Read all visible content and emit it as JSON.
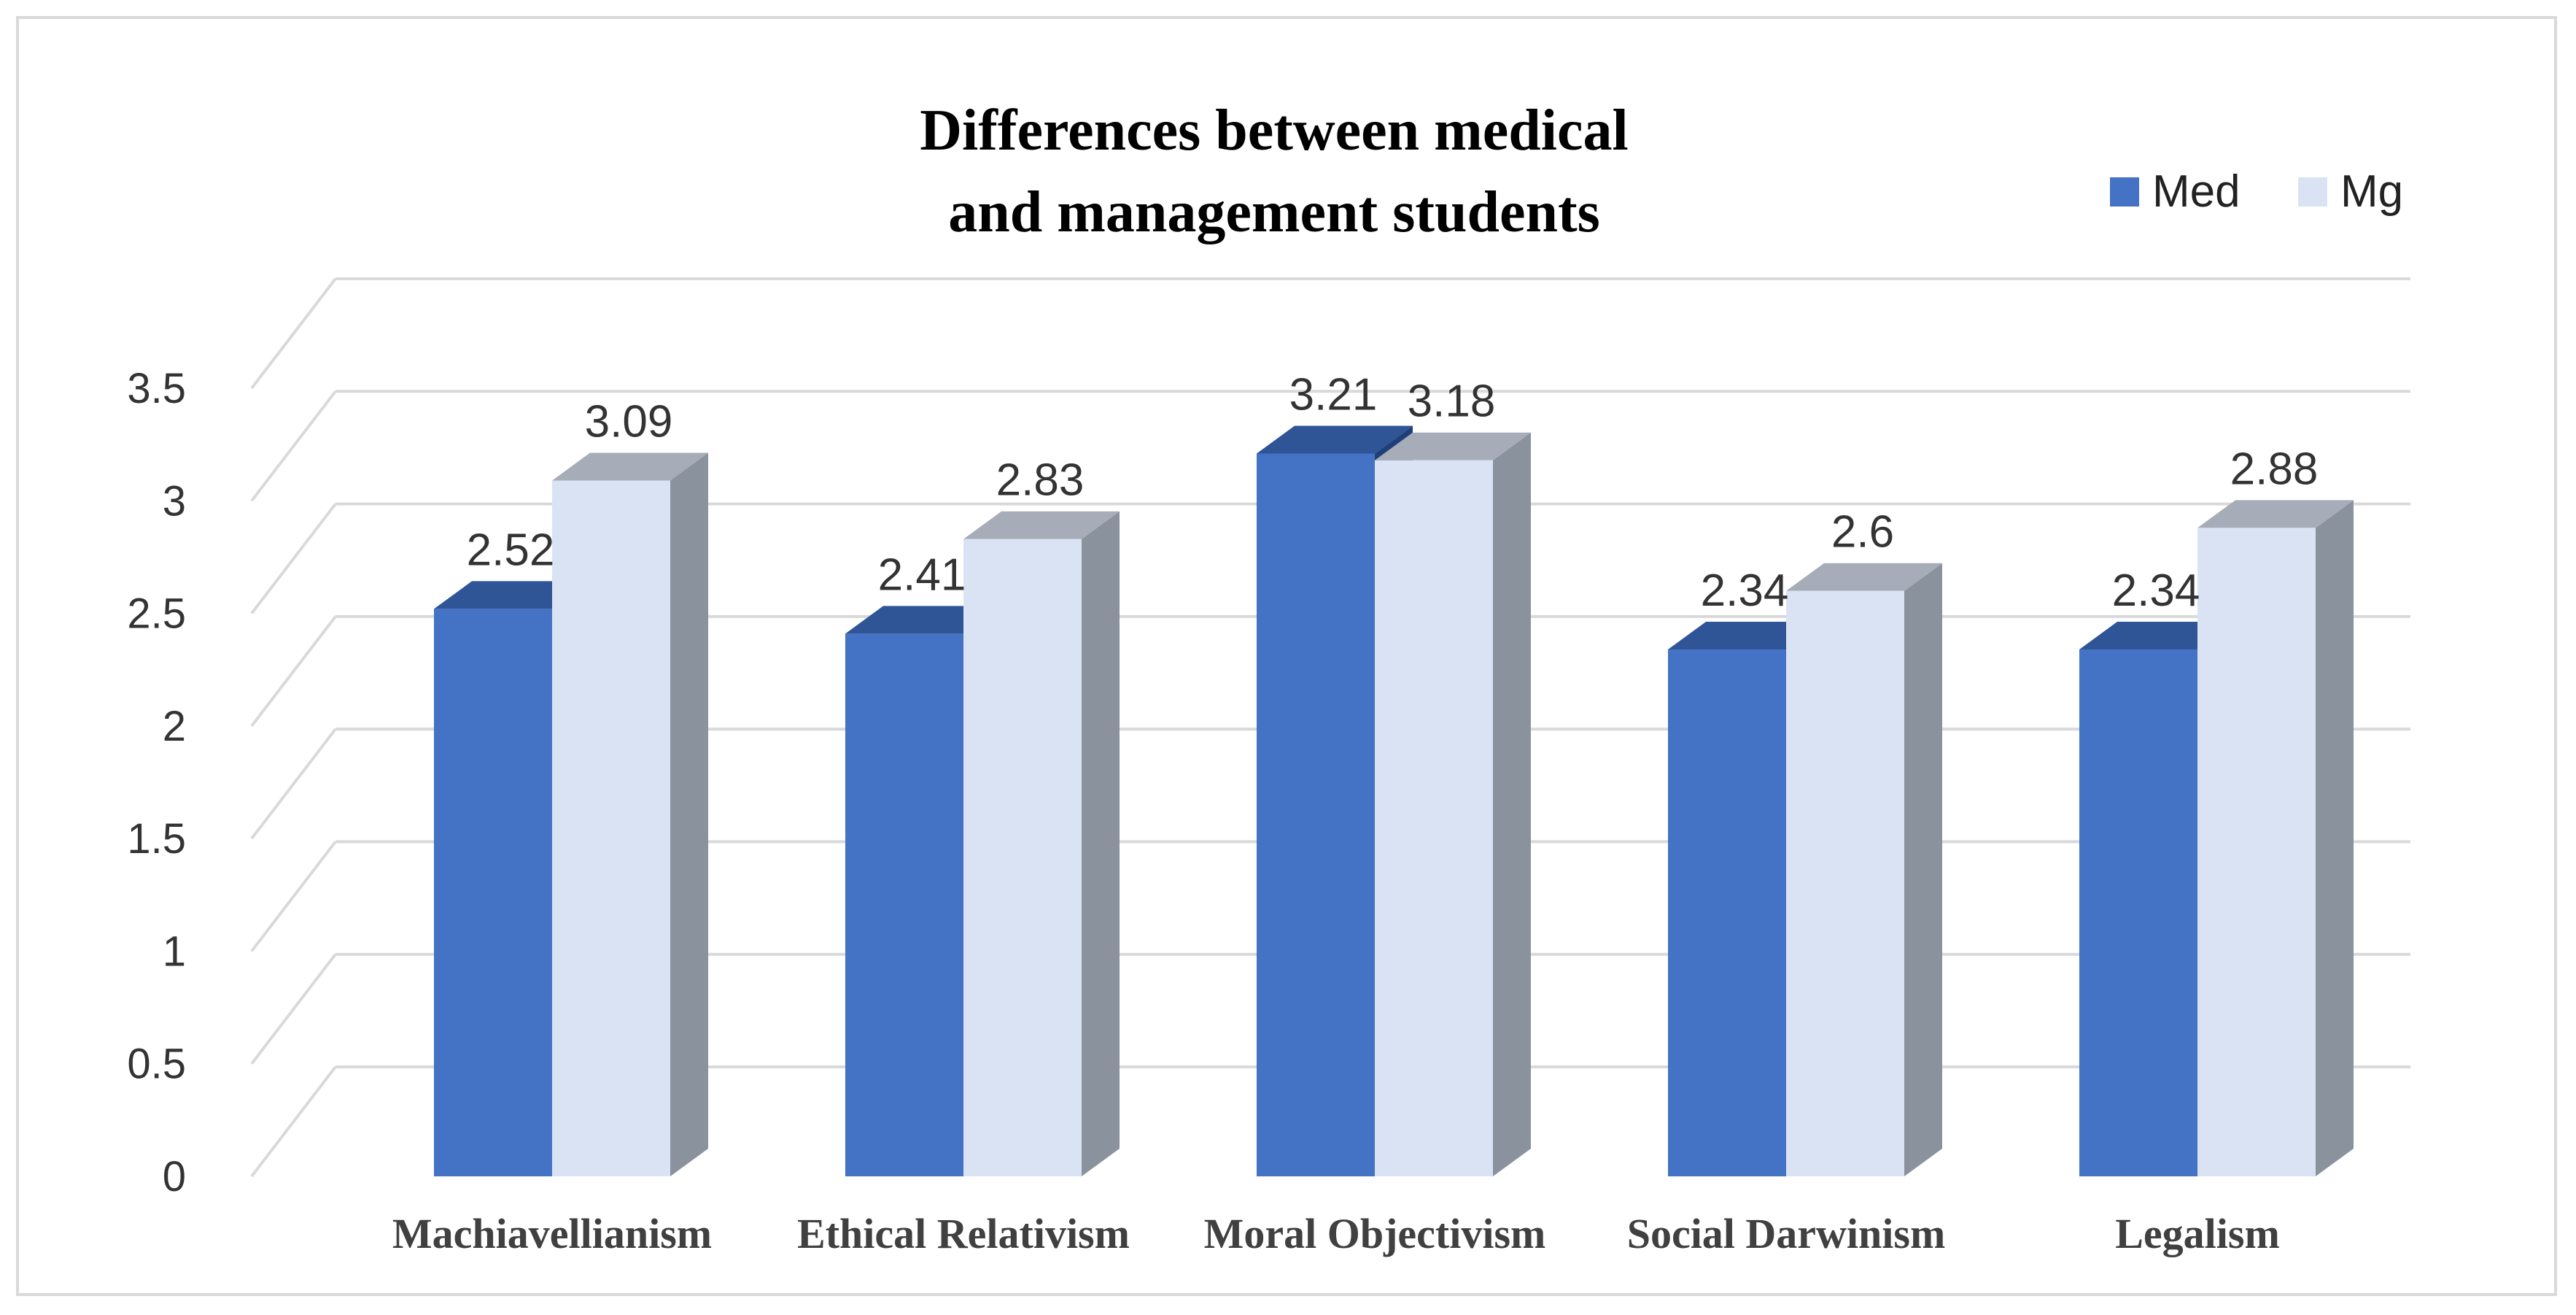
{
  "chart_data": {
    "type": "bar",
    "title_lines": [
      "Differences between medical",
      "and management students"
    ],
    "categories": [
      "Machiavellianism",
      "Ethical Relativism",
      "Moral Objectivism",
      "Social Darwinism",
      "Legalism"
    ],
    "series": [
      {
        "name": "Med",
        "values": [
          2.52,
          2.41,
          3.21,
          2.34,
          2.34
        ],
        "value_labels": [
          "2.52",
          "2.41",
          "3.21",
          "2.34",
          "2.34"
        ],
        "color": "#4472C4"
      },
      {
        "name": "Mg",
        "values": [
          3.09,
          2.83,
          3.18,
          2.6,
          2.88
        ],
        "value_labels": [
          "3.09",
          "2.83",
          "3.18",
          "2.6",
          "2.88"
        ],
        "color": "#DAE3F3"
      }
    ],
    "ylim": [
      0,
      3.5
    ],
    "yticks": [
      "0",
      "0.5",
      "1",
      "1.5",
      "2",
      "2.5",
      "3",
      "3.5"
    ],
    "grid": true,
    "legend_position": "top-right",
    "style": "3d-clustered-column"
  }
}
